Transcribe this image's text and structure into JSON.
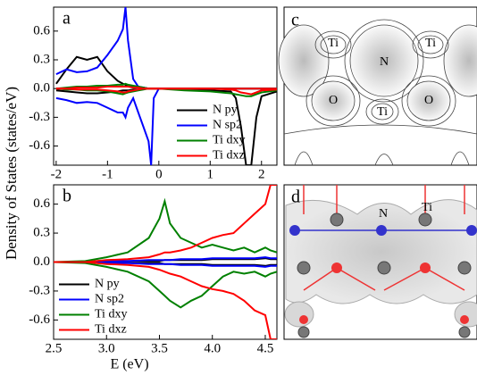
{
  "chart_data": [
    {
      "type": "line",
      "panel": "a",
      "ylabel": "Density of States (states/eV)",
      "legend": "lower right",
      "x": [
        -2,
        -1.8,
        -1.6,
        -1.4,
        -1.2,
        -1,
        -0.8,
        -0.7,
        -0.65,
        -0.6,
        -0.5,
        -0.4,
        -0.3,
        -0.2,
        -0.15,
        -0.1,
        0,
        0.5,
        1,
        1.4,
        1.5,
        1.6,
        1.7,
        1.8,
        1.9,
        2,
        2.3
      ],
      "xlim": [
        -2.05,
        2.3
      ],
      "ylim": [
        -0.8,
        0.85
      ],
      "xticks": [
        -2,
        -1,
        0,
        1,
        2
      ],
      "yticks": [
        -0.6,
        -0.3,
        {
          "value": 0,
          "label": "0.0"
        },
        0.3,
        0.6
      ],
      "series": [
        {
          "name": "N py",
          "color": "#000000",
          "values": [
            0.05,
            0.2,
            0.33,
            0.3,
            0.33,
            0.18,
            0.08,
            0.05,
            0.04,
            0.03,
            0.02,
            0.01,
            0.01,
            0,
            0,
            0,
            0,
            0,
            0,
            0,
            0,
            0,
            0,
            0,
            0,
            0,
            0
          ],
          "values_down": [
            -0.02,
            -0.03,
            -0.04,
            -0.05,
            -0.05,
            -0.04,
            -0.03,
            -0.02,
            -0.02,
            -0.02,
            -0.01,
            -0.01,
            0,
            0,
            0,
            0,
            0,
            -0.01,
            -0.02,
            -0.03,
            -0.1,
            -0.4,
            -0.8,
            -0.8,
            -0.3,
            -0.08,
            -0.03
          ]
        },
        {
          "name": "N sp2",
          "color": "#0000ff",
          "values": [
            0.15,
            0.2,
            0.17,
            0.18,
            0.22,
            0.35,
            0.5,
            0.62,
            0.85,
            0.5,
            0.1,
            0.02,
            0.01,
            0,
            0,
            0,
            0,
            0,
            0,
            0,
            0,
            0,
            0,
            0,
            0,
            0,
            0
          ],
          "values_down": [
            -0.1,
            -0.12,
            -0.15,
            -0.14,
            -0.15,
            -0.2,
            -0.25,
            -0.25,
            -0.3,
            -0.2,
            -0.1,
            -0.25,
            -0.4,
            -0.55,
            -0.8,
            -0.1,
            0,
            0,
            0,
            0,
            0,
            0,
            0,
            0,
            0,
            0,
            0
          ]
        },
        {
          "name": "Ti dxy",
          "color": "#008000",
          "values": [
            0,
            0.01,
            0.02,
            0.02,
            0.03,
            0.03,
            0.04,
            0.04,
            0.05,
            0.04,
            0.03,
            0.02,
            0.01,
            0,
            0,
            0,
            0,
            0,
            0,
            0,
            0,
            0,
            0,
            0,
            0,
            0,
            0
          ],
          "values_down": [
            0,
            -0.01,
            -0.01,
            -0.02,
            -0.02,
            -0.03,
            -0.05,
            -0.06,
            -0.05,
            -0.04,
            -0.03,
            -0.02,
            -0.01,
            0,
            0,
            0,
            0,
            -0.02,
            -0.03,
            -0.05,
            -0.06,
            -0.07,
            -0.08,
            -0.08,
            -0.06,
            -0.04,
            -0.02
          ]
        },
        {
          "name": "Ti dxz",
          "color": "#ff0000",
          "values": [
            0,
            0,
            0.01,
            0.01,
            0.01,
            0.02,
            0.02,
            0.02,
            0.02,
            0.02,
            0.01,
            0.01,
            0,
            0,
            0,
            0,
            0,
            0,
            0,
            0,
            0,
            0,
            0,
            0,
            0,
            0,
            0
          ],
          "values_down": [
            0,
            0,
            -0.01,
            -0.01,
            -0.01,
            -0.02,
            -0.03,
            -0.04,
            -0.04,
            -0.03,
            -0.02,
            -0.01,
            0,
            0,
            0,
            0,
            0,
            0,
            0,
            -0.01,
            -0.02,
            -0.04,
            -0.05,
            -0.06,
            -0.04,
            -0.02,
            -0.01
          ]
        }
      ]
    },
    {
      "type": "line",
      "panel": "b",
      "xlabel": "E (eV)",
      "legend": "lower left",
      "x": [
        2.5,
        2.8,
        3,
        3.2,
        3.4,
        3.5,
        3.55,
        3.6,
        3.7,
        3.8,
        3.9,
        4,
        4.1,
        4.2,
        4.3,
        4.4,
        4.5,
        4.55,
        4.61
      ],
      "xlim": [
        2.5,
        4.61
      ],
      "ylim": [
        -0.8,
        0.8
      ],
      "xticks": [
        2.5,
        {
          "value": 3,
          "label": "3.0"
        },
        3.5,
        {
          "value": 4,
          "label": "4.0"
        },
        4.5
      ],
      "yticks": [
        -0.6,
        -0.3,
        {
          "value": 0,
          "label": "0.0"
        },
        0.3,
        0.6
      ],
      "series": [
        {
          "name": "N py",
          "color": "#000000",
          "values": [
            0,
            0,
            0.01,
            0.01,
            0.01,
            0.01,
            0.02,
            0.02,
            0.02,
            0.02,
            0.02,
            0.03,
            0.03,
            0.03,
            0.03,
            0.03,
            0.04,
            0.03,
            0.03
          ],
          "values_down": [
            0,
            0,
            -0.01,
            -0.01,
            -0.01,
            -0.01,
            -0.02,
            -0.02,
            -0.02,
            -0.02,
            -0.02,
            -0.03,
            -0.03,
            -0.03,
            -0.03,
            -0.03,
            -0.04,
            -0.03,
            -0.03
          ]
        },
        {
          "name": "N sp2",
          "color": "#0000ff",
          "values": [
            0,
            0,
            0.01,
            0.01,
            0.02,
            0.02,
            0.02,
            0.02,
            0.03,
            0.03,
            0.03,
            0.04,
            0.04,
            0.04,
            0.04,
            0.04,
            0.05,
            0.04,
            0.04
          ],
          "values_down": [
            0,
            0,
            -0.01,
            -0.01,
            -0.02,
            -0.02,
            -0.02,
            -0.02,
            -0.03,
            -0.03,
            -0.03,
            -0.04,
            -0.04,
            -0.04,
            -0.04,
            -0.04,
            -0.05,
            -0.04,
            -0.04
          ]
        },
        {
          "name": "Ti dxy",
          "color": "#008000",
          "values": [
            0,
            0.01,
            0.05,
            0.1,
            0.25,
            0.45,
            0.63,
            0.4,
            0.25,
            0.2,
            0.15,
            0.18,
            0.15,
            0.12,
            0.15,
            0.1,
            0.15,
            0.12,
            0.1
          ],
          "values_down": [
            0,
            -0.01,
            -0.05,
            -0.1,
            -0.2,
            -0.3,
            -0.35,
            -0.4,
            -0.47,
            -0.4,
            -0.35,
            -0.25,
            -0.15,
            -0.1,
            -0.12,
            -0.1,
            -0.15,
            -0.12,
            -0.1
          ]
        },
        {
          "name": "Ti dxz",
          "color": "#ff0000",
          "values": [
            0,
            0,
            0.02,
            0.03,
            0.05,
            0.08,
            0.1,
            0.1,
            0.12,
            0.15,
            0.2,
            0.25,
            0.28,
            0.3,
            0.4,
            0.5,
            0.6,
            0.8,
            0.8
          ],
          "values_down": [
            0,
            0,
            -0.02,
            -0.03,
            -0.05,
            -0.08,
            -0.1,
            -0.12,
            -0.15,
            -0.2,
            -0.25,
            -0.28,
            -0.3,
            -0.33,
            -0.4,
            -0.5,
            -0.55,
            -0.8,
            -0.8
          ]
        }
      ]
    }
  ],
  "images": [
    {
      "panel": "c",
      "labels": [
        "Ti",
        "Ti",
        "N",
        "O",
        "O",
        "Ti"
      ]
    },
    {
      "panel": "d",
      "labels": [
        "N",
        "Ti"
      ]
    }
  ]
}
